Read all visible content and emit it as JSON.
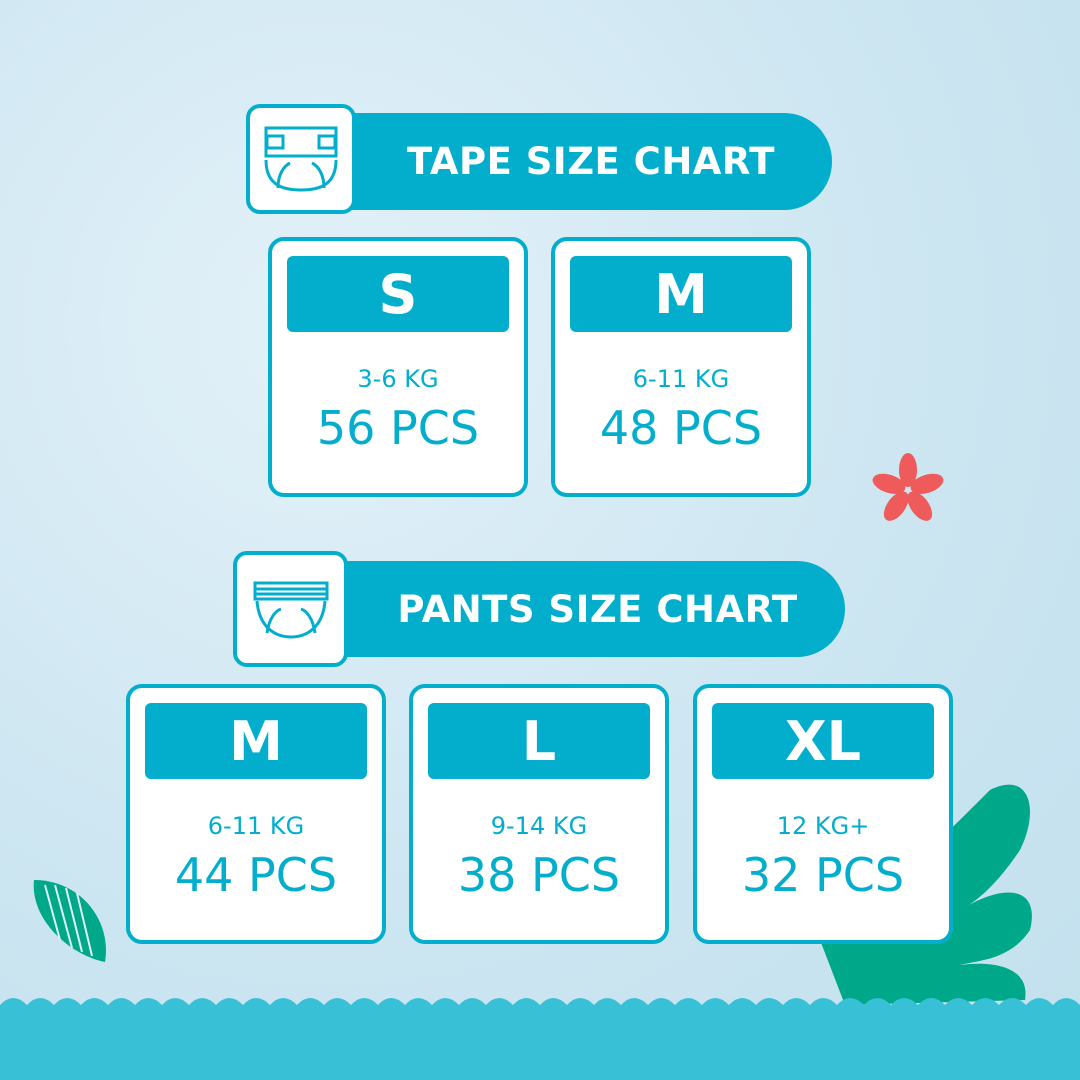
{
  "colors": {
    "accent": "#02aecb",
    "background": "#cfe7f3",
    "water": "#38c1d6",
    "leaf": "#00a88a",
    "flower": "#ef5a5a"
  },
  "tape": {
    "icon": "tape-diaper-icon",
    "title": "TAPE SIZE CHART",
    "sizes": [
      {
        "size": "S",
        "weight": "3-6 KG",
        "count": "56 PCS"
      },
      {
        "size": "M",
        "weight": "6-11 KG",
        "count": "48 PCS"
      }
    ]
  },
  "pants": {
    "icon": "pants-diaper-icon",
    "title": "PANTS SIZE CHART",
    "sizes": [
      {
        "size": "M",
        "weight": "6-11 KG",
        "count": "44 PCS"
      },
      {
        "size": "L",
        "weight": "9-14 KG",
        "count": "38 PCS"
      },
      {
        "size": "XL",
        "weight": "12 KG+",
        "count": "32 PCS"
      }
    ]
  }
}
